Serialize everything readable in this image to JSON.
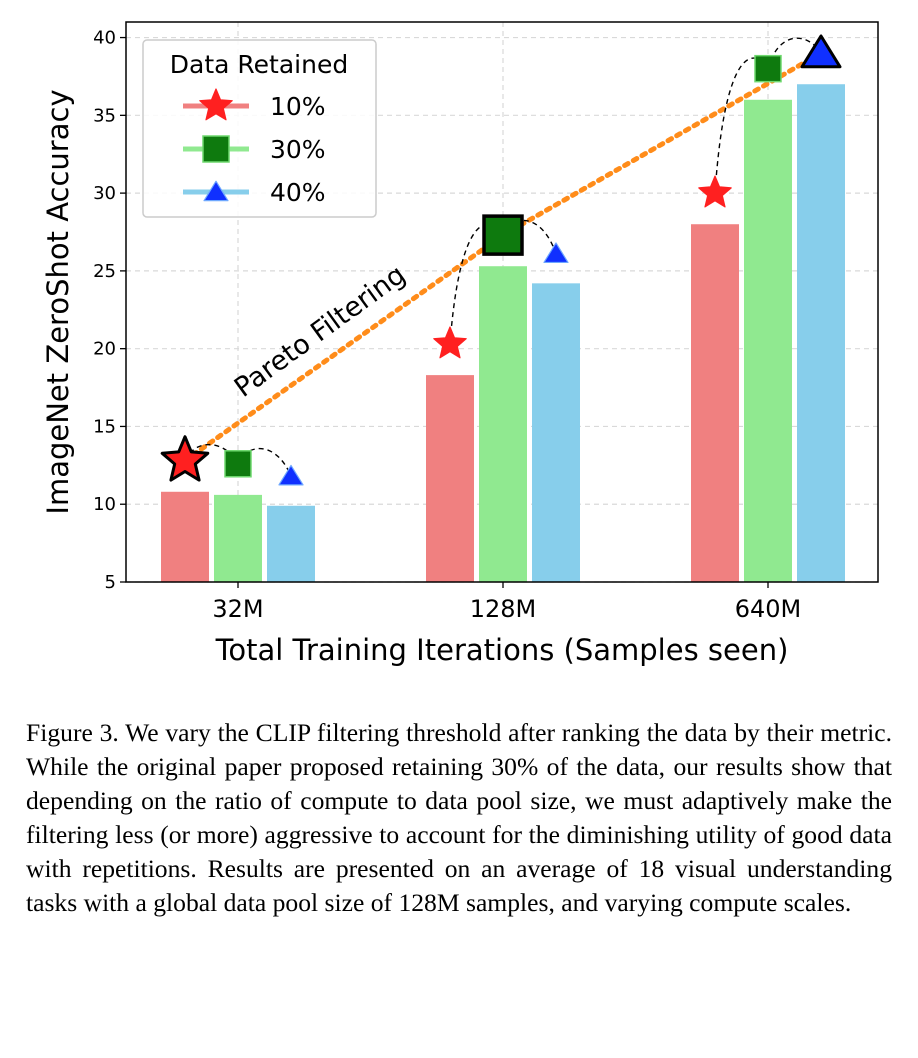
{
  "chart_data": {
    "type": "bar",
    "categories": [
      "32M",
      "128M",
      "640M"
    ],
    "series": [
      {
        "name": "10%",
        "values": [
          10.8,
          18.3,
          28.0
        ],
        "bar_color": "#f08080",
        "marker": "star",
        "marker_color": "#ff2020",
        "marker_values": [
          12.8,
          20.3,
          30.0
        ]
      },
      {
        "name": "30%",
        "values": [
          10.6,
          25.3,
          36.0
        ],
        "bar_color": "#90e990",
        "marker": "square",
        "marker_color": "#0e7a0e",
        "marker_values": [
          12.6,
          27.3,
          38.0
        ]
      },
      {
        "name": "40%",
        "values": [
          9.9,
          24.2,
          37.0
        ],
        "bar_color": "#87ceeb",
        "marker": "triangle",
        "marker_color": "#1030ff",
        "marker_values": [
          11.8,
          26.1,
          39.0
        ]
      }
    ],
    "highlighted": [
      {
        "category": "32M",
        "series": "10%"
      },
      {
        "category": "128M",
        "series": "30%"
      },
      {
        "category": "640M",
        "series": "40%"
      }
    ],
    "xlabel": "Total Training Iterations (Samples seen)",
    "ylabel": "ImageNet ZeroShot Accuracy",
    "ylim": [
      5,
      41
    ],
    "yticks": [
      5,
      10,
      15,
      20,
      25,
      30,
      35,
      40
    ],
    "grid": true,
    "legend": {
      "title": "Data Retained",
      "placement": "top-left"
    },
    "annotation": {
      "text": "Pareto Filtering",
      "line_color": "#ff8c1a"
    }
  },
  "caption": "Figure 3.  We vary the CLIP filtering threshold after ranking the data by their metric. While the original paper proposed retaining 30% of the data, our results show that depending on the ratio of compute to data pool size, we must adaptively make the filtering less (or more) aggressive to account for the diminishing utility of good data with repetitions. Results are presented on an average of 18 visual understanding tasks with a global data pool size of 128M samples, and varying compute scales."
}
